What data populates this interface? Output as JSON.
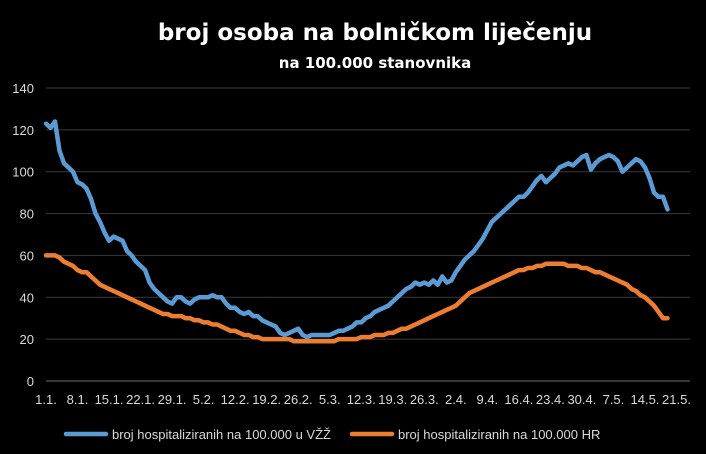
{
  "chart_data": {
    "type": "line",
    "title": "broj osoba na bolničkom liječenju",
    "subtitle": "na 100.000 stanovnika",
    "xlabel": "",
    "ylabel": "",
    "ylim": [
      0,
      140
    ],
    "yticks": [
      0,
      20,
      40,
      60,
      80,
      100,
      120,
      140
    ],
    "grid": true,
    "legend_position": "bottom",
    "x_tick_labels": [
      "1.1.",
      "8.1.",
      "15.1.",
      "22.1.",
      "29.1.",
      "5.2.",
      "12.2.",
      "19.2.",
      "26.2.",
      "5.3.",
      "12.3.",
      "19.3.",
      "26.3.",
      "2.4.",
      "9.4.",
      "16.4.",
      "23.4.",
      "30.4.",
      "7.5.",
      "14.5.",
      "21.5."
    ],
    "x_days": [
      1,
      8,
      15,
      22,
      29,
      36,
      43,
      50,
      57,
      64,
      71,
      78,
      85,
      92,
      99,
      106,
      113,
      120,
      127,
      134,
      141
    ],
    "x_range": [
      1,
      144
    ],
    "series": [
      {
        "name": "broj hospitaliziranih na 100.000 u VŽŽ",
        "color": "#5b9bd5",
        "points": [
          [
            1,
            123
          ],
          [
            2,
            121
          ],
          [
            3,
            124
          ],
          [
            4,
            110
          ],
          [
            5,
            104
          ],
          [
            6,
            102
          ],
          [
            7,
            100
          ],
          [
            8,
            95
          ],
          [
            9,
            94
          ],
          [
            10,
            92
          ],
          [
            11,
            87
          ],
          [
            12,
            80
          ],
          [
            13,
            76
          ],
          [
            14,
            71
          ],
          [
            15,
            67
          ],
          [
            16,
            69
          ],
          [
            17,
            68
          ],
          [
            18,
            67
          ],
          [
            19,
            62
          ],
          [
            20,
            60
          ],
          [
            21,
            57
          ],
          [
            22,
            55
          ],
          [
            23,
            53
          ],
          [
            24,
            47
          ],
          [
            25,
            44
          ],
          [
            26,
            42
          ],
          [
            27,
            40
          ],
          [
            28,
            38
          ],
          [
            29,
            37
          ],
          [
            30,
            40
          ],
          [
            31,
            40
          ],
          [
            32,
            38
          ],
          [
            33,
            37
          ],
          [
            34,
            39
          ],
          [
            35,
            40
          ],
          [
            36,
            40
          ],
          [
            37,
            40
          ],
          [
            38,
            41
          ],
          [
            39,
            40
          ],
          [
            40,
            40
          ],
          [
            41,
            37
          ],
          [
            42,
            35
          ],
          [
            43,
            35
          ],
          [
            44,
            33
          ],
          [
            45,
            32
          ],
          [
            46,
            33
          ],
          [
            47,
            31
          ],
          [
            48,
            31
          ],
          [
            49,
            29
          ],
          [
            50,
            28
          ],
          [
            51,
            27
          ],
          [
            52,
            26
          ],
          [
            53,
            23
          ],
          [
            54,
            22
          ],
          [
            55,
            23
          ],
          [
            56,
            24
          ],
          [
            57,
            25
          ],
          [
            58,
            22
          ],
          [
            59,
            21
          ],
          [
            60,
            22
          ],
          [
            61,
            22
          ],
          [
            62,
            22
          ],
          [
            63,
            22
          ],
          [
            64,
            22
          ],
          [
            65,
            23
          ],
          [
            66,
            24
          ],
          [
            67,
            24
          ],
          [
            68,
            25
          ],
          [
            69,
            26
          ],
          [
            70,
            28
          ],
          [
            71,
            28
          ],
          [
            72,
            30
          ],
          [
            73,
            31
          ],
          [
            74,
            33
          ],
          [
            75,
            34
          ],
          [
            76,
            35
          ],
          [
            77,
            36
          ],
          [
            78,
            38
          ],
          [
            79,
            40
          ],
          [
            80,
            42
          ],
          [
            81,
            44
          ],
          [
            82,
            45
          ],
          [
            83,
            47
          ],
          [
            84,
            46
          ],
          [
            85,
            47
          ],
          [
            86,
            46
          ],
          [
            87,
            48
          ],
          [
            88,
            46
          ],
          [
            89,
            50
          ],
          [
            90,
            47
          ],
          [
            91,
            48
          ],
          [
            92,
            52
          ],
          [
            93,
            55
          ],
          [
            94,
            58
          ],
          [
            95,
            60
          ],
          [
            96,
            62
          ],
          [
            97,
            65
          ],
          [
            98,
            68
          ],
          [
            99,
            72
          ],
          [
            100,
            76
          ],
          [
            101,
            78
          ],
          [
            102,
            80
          ],
          [
            103,
            82
          ],
          [
            104,
            84
          ],
          [
            105,
            86
          ],
          [
            106,
            88
          ],
          [
            107,
            88
          ],
          [
            108,
            90
          ],
          [
            109,
            93
          ],
          [
            110,
            96
          ],
          [
            111,
            98
          ],
          [
            112,
            95
          ],
          [
            113,
            97
          ],
          [
            114,
            99
          ],
          [
            115,
            102
          ],
          [
            116,
            103
          ],
          [
            117,
            104
          ],
          [
            118,
            103
          ],
          [
            119,
            105
          ],
          [
            120,
            107
          ],
          [
            121,
            108
          ],
          [
            122,
            101
          ],
          [
            123,
            104
          ],
          [
            124,
            106
          ],
          [
            125,
            107
          ],
          [
            126,
            108
          ],
          [
            127,
            107
          ],
          [
            128,
            105
          ],
          [
            129,
            100
          ],
          [
            130,
            102
          ],
          [
            131,
            104
          ],
          [
            132,
            106
          ],
          [
            133,
            105
          ],
          [
            134,
            102
          ],
          [
            135,
            97
          ],
          [
            136,
            90
          ],
          [
            137,
            88
          ],
          [
            138,
            88
          ],
          [
            139,
            82
          ]
        ]
      },
      {
        "name": "broj hospitaliziranih na 100.000 HR",
        "color": "#ed7d31",
        "points": [
          [
            1,
            60
          ],
          [
            2,
            60
          ],
          [
            3,
            60
          ],
          [
            4,
            59
          ],
          [
            5,
            57
          ],
          [
            6,
            56
          ],
          [
            7,
            55
          ],
          [
            8,
            53
          ],
          [
            9,
            52
          ],
          [
            10,
            52
          ],
          [
            11,
            50
          ],
          [
            12,
            48
          ],
          [
            13,
            46
          ],
          [
            14,
            45
          ],
          [
            15,
            44
          ],
          [
            16,
            43
          ],
          [
            17,
            42
          ],
          [
            18,
            41
          ],
          [
            19,
            40
          ],
          [
            20,
            39
          ],
          [
            21,
            38
          ],
          [
            22,
            37
          ],
          [
            23,
            36
          ],
          [
            24,
            35
          ],
          [
            25,
            34
          ],
          [
            26,
            33
          ],
          [
            27,
            32
          ],
          [
            28,
            32
          ],
          [
            29,
            31
          ],
          [
            30,
            31
          ],
          [
            31,
            31
          ],
          [
            32,
            30
          ],
          [
            33,
            30
          ],
          [
            34,
            29
          ],
          [
            35,
            29
          ],
          [
            36,
            28
          ],
          [
            37,
            28
          ],
          [
            38,
            27
          ],
          [
            39,
            27
          ],
          [
            40,
            26
          ],
          [
            41,
            25
          ],
          [
            42,
            24
          ],
          [
            43,
            24
          ],
          [
            44,
            23
          ],
          [
            45,
            22
          ],
          [
            46,
            22
          ],
          [
            47,
            21
          ],
          [
            48,
            21
          ],
          [
            49,
            20
          ],
          [
            50,
            20
          ],
          [
            51,
            20
          ],
          [
            52,
            20
          ],
          [
            53,
            20
          ],
          [
            54,
            20
          ],
          [
            55,
            20
          ],
          [
            56,
            19
          ],
          [
            57,
            19
          ],
          [
            58,
            19
          ],
          [
            59,
            19
          ],
          [
            60,
            19
          ],
          [
            61,
            19
          ],
          [
            62,
            19
          ],
          [
            63,
            19
          ],
          [
            64,
            19
          ],
          [
            65,
            19
          ],
          [
            66,
            20
          ],
          [
            67,
            20
          ],
          [
            68,
            20
          ],
          [
            69,
            20
          ],
          [
            70,
            20
          ],
          [
            71,
            21
          ],
          [
            72,
            21
          ],
          [
            73,
            21
          ],
          [
            74,
            22
          ],
          [
            75,
            22
          ],
          [
            76,
            22
          ],
          [
            77,
            23
          ],
          [
            78,
            23
          ],
          [
            79,
            24
          ],
          [
            80,
            25
          ],
          [
            81,
            25
          ],
          [
            82,
            26
          ],
          [
            83,
            27
          ],
          [
            84,
            28
          ],
          [
            85,
            29
          ],
          [
            86,
            30
          ],
          [
            87,
            31
          ],
          [
            88,
            32
          ],
          [
            89,
            33
          ],
          [
            90,
            34
          ],
          [
            91,
            35
          ],
          [
            92,
            36
          ],
          [
            93,
            38
          ],
          [
            94,
            40
          ],
          [
            95,
            42
          ],
          [
            96,
            43
          ],
          [
            97,
            44
          ],
          [
            98,
            45
          ],
          [
            99,
            46
          ],
          [
            100,
            47
          ],
          [
            101,
            48
          ],
          [
            102,
            49
          ],
          [
            103,
            50
          ],
          [
            104,
            51
          ],
          [
            105,
            52
          ],
          [
            106,
            53
          ],
          [
            107,
            53
          ],
          [
            108,
            54
          ],
          [
            109,
            54
          ],
          [
            110,
            55
          ],
          [
            111,
            55
          ],
          [
            112,
            56
          ],
          [
            113,
            56
          ],
          [
            114,
            56
          ],
          [
            115,
            56
          ],
          [
            116,
            56
          ],
          [
            117,
            55
          ],
          [
            118,
            55
          ],
          [
            119,
            55
          ],
          [
            120,
            54
          ],
          [
            121,
            54
          ],
          [
            122,
            53
          ],
          [
            123,
            52
          ],
          [
            124,
            52
          ],
          [
            125,
            51
          ],
          [
            126,
            50
          ],
          [
            127,
            49
          ],
          [
            128,
            48
          ],
          [
            129,
            47
          ],
          [
            130,
            46
          ],
          [
            131,
            44
          ],
          [
            132,
            43
          ],
          [
            133,
            41
          ],
          [
            134,
            40
          ],
          [
            135,
            38
          ],
          [
            136,
            36
          ],
          [
            137,
            33
          ],
          [
            138,
            30
          ],
          [
            139,
            30
          ]
        ]
      }
    ]
  }
}
